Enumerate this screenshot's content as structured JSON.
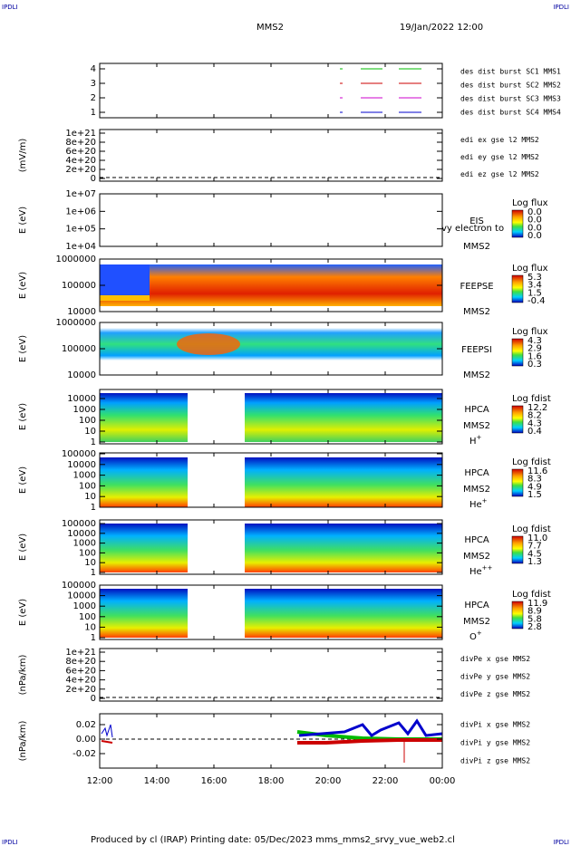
{
  "header": {
    "corner_left": "IPDLI",
    "corner_right": "IPDLI",
    "title": "MMS2",
    "date": "19/Jan/2022 12:00"
  },
  "footer": {
    "text": "Produced by cl (IRAP)   Printing date: 05/Dec/2023   mms_mms2_srvy_vue_web2.cl",
    "corner_left": "IPDLI",
    "corner_right": "IPDLI"
  },
  "xticks": [
    "12:00",
    "14:00",
    "16:00",
    "18:00",
    "20:00",
    "22:00",
    "00:00"
  ],
  "panels": [
    {
      "ylabel": null,
      "yticks": [
        "4",
        "3",
        "2",
        "1"
      ],
      "legend": [
        {
          "text": "des dist burst SC1 MMS1",
          "color": "#0000cc"
        },
        {
          "text": "des dist burst SC2 MMS2",
          "color": "#cc00cc"
        },
        {
          "text": "des dist burst SC3 MMS3",
          "color": "#cc0000"
        },
        {
          "text": "des dist burst SC4 MMS4",
          "color": "#00bb00"
        }
      ]
    },
    {
      "ylabel": "(mV/m)",
      "yticks": [
        "1e+21",
        "8e+20",
        "6e+20",
        "4e+20",
        "2e+20",
        "0"
      ],
      "legend": [
        {
          "text": "edi ex gse l2 MMS2",
          "color": "#cc0000"
        },
        {
          "text": "edi ey gse l2 MMS2",
          "color": "#00bb00"
        },
        {
          "text": "edi ez gse l2 MMS2",
          "color": "#0000cc"
        }
      ]
    },
    {
      "ylabel": "E (eV)",
      "yticks": [
        "1e+07",
        "1e+06",
        "1e+05",
        "1e+04"
      ],
      "labels": [
        "EIS",
        "MMS2"
      ],
      "note": "vy electron to",
      "colorbar": {
        "title": "Log flux",
        "labels": [
          "0.0",
          "0.0",
          "0.0",
          "0.0"
        ]
      }
    },
    {
      "ylabel": "E (eV)",
      "yticks": [
        "1000000",
        "100000",
        "10000"
      ],
      "labels": [
        "FEEPSE",
        "MMS2"
      ],
      "colorbar": {
        "title": "Log flux",
        "labels": [
          "5.3",
          "3.4",
          "1.5",
          "-0.4"
        ]
      }
    },
    {
      "ylabel": "E (eV)",
      "yticks": [
        "1000000",
        "100000",
        "10000"
      ],
      "labels": [
        "FEEPSI",
        "MMS2"
      ],
      "colorbar": {
        "title": "Log flux",
        "labels": [
          "4.3",
          "2.9",
          "1.6",
          "0.3"
        ]
      }
    },
    {
      "ylabel": "E (eV)",
      "yticks": [
        "10000",
        "1000",
        "100",
        "10",
        "1"
      ],
      "labels": [
        "HPCA",
        "MMS2"
      ],
      "ion": {
        "name": "H",
        "charge": "+"
      },
      "colorbar": {
        "title": "Log fdist",
        "labels": [
          "12.2",
          "8.2",
          "4.3",
          "0.4"
        ]
      }
    },
    {
      "ylabel": "E (eV)",
      "yticks": [
        "100000",
        "10000",
        "1000",
        "100",
        "10",
        "1"
      ],
      "labels": [
        "HPCA",
        "MMS2"
      ],
      "ion": {
        "name": "He",
        "charge": "+"
      },
      "colorbar": {
        "title": "Log fdist",
        "labels": [
          "11.6",
          "8.3",
          "4.9",
          "1.5"
        ]
      }
    },
    {
      "ylabel": "E (eV)",
      "yticks": [
        "100000",
        "10000",
        "1000",
        "100",
        "10",
        "1"
      ],
      "labels": [
        "HPCA",
        "MMS2"
      ],
      "ion": {
        "name": "He",
        "charge": "++"
      },
      "colorbar": {
        "title": "Log fdist",
        "labels": [
          "11.0",
          "7.7",
          "4.5",
          "1.3"
        ]
      }
    },
    {
      "ylabel": "E (eV)",
      "yticks": [
        "100000",
        "10000",
        "1000",
        "100",
        "10",
        "1"
      ],
      "labels": [
        "HPCA",
        "MMS2"
      ],
      "ion": {
        "name": "O",
        "charge": "+"
      },
      "colorbar": {
        "title": "Log fdist",
        "labels": [
          "11.9",
          "8.9",
          "5.8",
          "2.8"
        ]
      }
    },
    {
      "ylabel": "(nPa/km)",
      "yticks": [
        "1e+21",
        "8e+20",
        "6e+20",
        "4e+20",
        "2e+20",
        "0"
      ],
      "legend": [
        {
          "text": "divPe x gse MMS2",
          "color": "#cc0000"
        },
        {
          "text": "divPe y gse MMS2",
          "color": "#00bb00"
        },
        {
          "text": "divPe z gse MMS2",
          "color": "#0000cc"
        }
      ]
    },
    {
      "ylabel": "(nPa/km)",
      "yticks": [
        "0.02",
        "0.00",
        "-0.02"
      ],
      "legend": [
        {
          "text": "divPi x gse MMS2",
          "color": "#cc0000"
        },
        {
          "text": "divPi y gse MMS2",
          "color": "#00bb00"
        },
        {
          "text": "divPi z gse MMS2",
          "color": "#0000cc"
        }
      ]
    }
  ]
}
